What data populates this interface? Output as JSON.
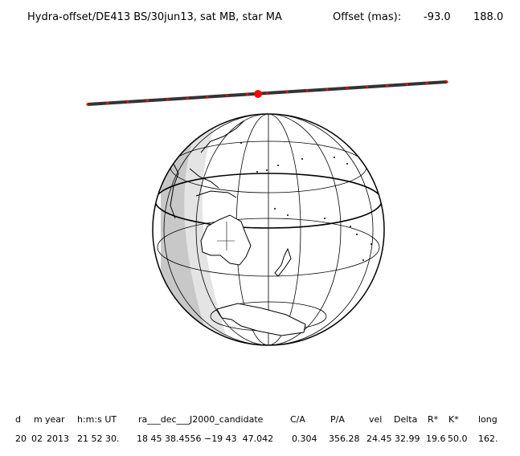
{
  "header": {
    "title": "Hydra-offset/DE413 BS/30jun13, sat MB, star MA",
    "offset_label": "Offset (mas):",
    "offset_x": "-93.0",
    "offset_y": "188.0"
  },
  "table": {
    "headers": [
      "d",
      "m",
      "year",
      "h:m:s UT",
      "ra___dec___J2000_candidate",
      "C/A",
      "P/A",
      "vel",
      "Delta",
      "R*",
      "K*",
      "long"
    ],
    "values": [
      "20",
      "02",
      "2013",
      "21 52 30.",
      "18 45 38.4556 −19 43  47.042",
      "0.304",
      "356.28",
      "24.45",
      "32.99",
      "19.6",
      "50.0",
      "162."
    ]
  },
  "colors": {
    "track": "#333333",
    "track_dots": "#ff0000",
    "night_shade": "#c8c8c8",
    "twilight_shade": "#e4e4e4",
    "ink": "#000000"
  }
}
